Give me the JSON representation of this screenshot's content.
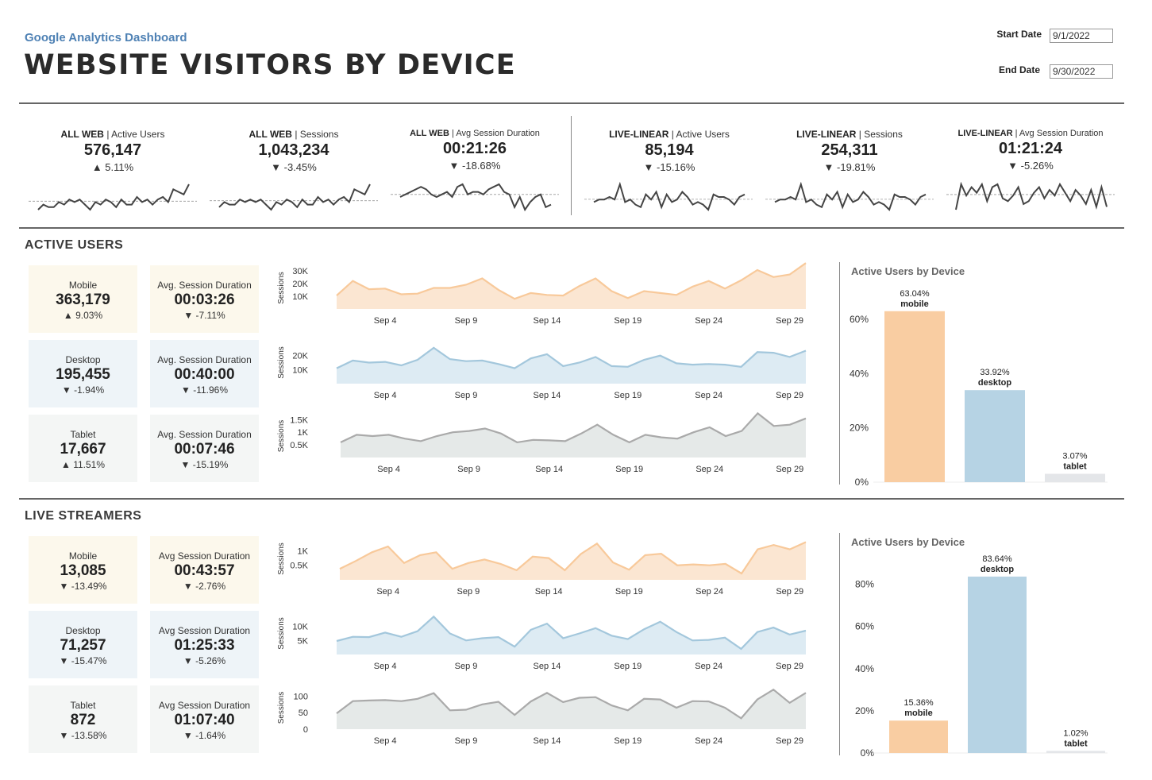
{
  "header": {
    "subtitle": "Google Analytics Dashboard",
    "title": "WEBSITE VISITORS BY DEVICE",
    "start_label": "Start Date",
    "start_value": "9/1/2022",
    "end_label": "End Date",
    "end_value": "9/30/2022"
  },
  "kpis": [
    {
      "group": "ALL WEB",
      "metric": "| Active Users",
      "value": "576,147",
      "change": "▲ 5.11%",
      "spark": [
        12,
        14,
        13,
        13,
        15,
        14,
        16,
        15,
        16,
        14,
        12,
        15,
        14,
        16,
        15,
        13,
        16,
        14,
        14,
        17,
        15,
        16,
        14,
        16,
        17,
        15,
        20,
        19,
        18,
        22
      ]
    },
    {
      "group": "ALL WEB",
      "metric": "| Sessions",
      "value": "1,043,234",
      "change": "▼ -3.45%",
      "spark": [
        13,
        15,
        14,
        14,
        16,
        15,
        16,
        15,
        16,
        14,
        12,
        15,
        14,
        16,
        15,
        13,
        16,
        14,
        14,
        17,
        15,
        16,
        14,
        16,
        17,
        15,
        20,
        19,
        18,
        22
      ]
    },
    {
      "group": "ALL WEB",
      "metric": "| Avg Session Duration",
      "value": "00:21:26",
      "change": "▼ -18.68%",
      "spark": [
        18,
        19,
        20,
        21,
        22,
        21,
        19,
        18,
        19,
        20,
        18,
        22,
        23,
        19,
        20,
        20,
        19,
        21,
        22,
        23,
        20,
        19,
        14,
        18,
        13,
        16,
        18,
        19,
        14,
        15
      ]
    },
    {
      "group": "LIVE-LINEAR",
      "metric": "| Active Users",
      "value": "85,194",
      "change": "▼ -15.16%",
      "spark": [
        15,
        16,
        16,
        17,
        16,
        22,
        15,
        16,
        14,
        13,
        18,
        16,
        19,
        13,
        18,
        15,
        16,
        19,
        17,
        14,
        15,
        14,
        12,
        18,
        17,
        17,
        16,
        14,
        17,
        18
      ]
    },
    {
      "group": "LIVE-LINEAR",
      "metric": "| Sessions",
      "value": "254,311",
      "change": "▼ -19.81%",
      "spark": [
        15,
        16,
        16,
        17,
        16,
        22,
        15,
        16,
        14,
        13,
        18,
        16,
        19,
        13,
        18,
        15,
        16,
        19,
        17,
        14,
        15,
        14,
        12,
        18,
        17,
        17,
        16,
        14,
        17,
        18
      ]
    },
    {
      "group": "LIVE-LINEAR",
      "metric": "| Avg Session Duration",
      "value": "01:21:24",
      "change": "▼ -5.26%",
      "spark": [
        12,
        21,
        17,
        20,
        18,
        21,
        15,
        20,
        21,
        16,
        15,
        17,
        20,
        14,
        15,
        18,
        20,
        16,
        19,
        17,
        21,
        18,
        15,
        19,
        17,
        14,
        19,
        13,
        20,
        13
      ]
    }
  ],
  "sections": [
    {
      "title": "ACTIVE USERS",
      "cards": [
        {
          "device": "Mobile",
          "value": "363,179",
          "change": "▲ 9.03%",
          "dur_label": "Avg. Session Duration",
          "dur_value": "00:03:26",
          "dur_change": "▼ -7.11%"
        },
        {
          "device": "Desktop",
          "value": "195,455",
          "change": "▼ -1.94%",
          "dur_label": "Avg. Session Duration",
          "dur_value": "00:40:00",
          "dur_change": "▼ -11.96%"
        },
        {
          "device": "Tablet",
          "value": "17,667",
          "change": "▲ 11.51%",
          "dur_label": "Avg. Session Duration",
          "dur_value": "00:07:46",
          "dur_change": "▼ -15.19%"
        }
      ],
      "bar_title": "Active Users by Device",
      "bar_yticks": [
        "60%",
        "40%",
        "20%",
        "0%"
      ]
    },
    {
      "title": "LIVE STREAMERS",
      "cards": [
        {
          "device": "Mobile",
          "value": "13,085",
          "change": "▼ -13.49%",
          "dur_label": "Avg Session Duration",
          "dur_value": "00:43:57",
          "dur_change": "▼ -2.76%"
        },
        {
          "device": "Desktop",
          "value": "71,257",
          "change": "▼ -15.47%",
          "dur_label": "Avg Session Duration",
          "dur_value": "01:25:33",
          "dur_change": "▼ -5.26%"
        },
        {
          "device": "Tablet",
          "value": "872",
          "change": "▼ -13.58%",
          "dur_label": "Avg Session Duration",
          "dur_value": "01:07:40",
          "dur_change": "▼ -1.64%"
        }
      ],
      "bar_title": "Active Users by Device",
      "bar_yticks": [
        "80%",
        "60%",
        "40%",
        "20%",
        "0%"
      ]
    }
  ],
  "colors": {
    "mobile": "#f8c99a",
    "mobile_fill": "#fbe6d2",
    "desktop": "#a3c7dc",
    "desktop_fill": "#ddebf3",
    "tablet": "#aaaaaa",
    "tablet_fill": "#e5e9e8",
    "bar_mobile": "#f9cda2",
    "bar_desktop": "#b6d3e4",
    "bar_tablet": "#e4e6e9"
  },
  "chart_data": [
    {
      "type": "area",
      "id": "au-mobile",
      "ylabel": "Sessions",
      "yticks": [
        "30K",
        "20K",
        "10K"
      ],
      "ylim": [
        0,
        33000
      ],
      "xticks": [
        "Sep 4",
        "Sep 9",
        "Sep 14",
        "Sep 19",
        "Sep 24",
        "Sep 29"
      ],
      "x": [
        1,
        2,
        3,
        4,
        5,
        6,
        7,
        8,
        9,
        10,
        11,
        12,
        13,
        14,
        15,
        16,
        17,
        18,
        19,
        20,
        21,
        22,
        23,
        24,
        25,
        26,
        27,
        28,
        29,
        30
      ],
      "values": [
        10500,
        22000,
        15500,
        16000,
        11500,
        12000,
        16500,
        16500,
        19000,
        24000,
        15000,
        8000,
        12500,
        11000,
        10500,
        18000,
        24000,
        14000,
        8500,
        14000,
        12500,
        11000,
        17500,
        22000,
        16000,
        22500,
        30500,
        25000,
        27000,
        36000
      ]
    },
    {
      "type": "area",
      "id": "au-desktop",
      "ylabel": "Sessions",
      "yticks": [
        "20K",
        "10K"
      ],
      "ylim": [
        0,
        30000
      ],
      "xticks": [
        "Sep 4",
        "Sep 9",
        "Sep 14",
        "Sep 19",
        "Sep 24",
        "Sep 29"
      ],
      "x": [
        1,
        2,
        3,
        4,
        5,
        6,
        7,
        8,
        9,
        10,
        11,
        12,
        13,
        14,
        15,
        16,
        17,
        18,
        19,
        20,
        21,
        22,
        23,
        24,
        25,
        26,
        27,
        28,
        29,
        30
      ],
      "values": [
        11000,
        16500,
        15000,
        15500,
        13000,
        17000,
        25500,
        17500,
        16000,
        16500,
        14000,
        11000,
        18000,
        21000,
        12500,
        15000,
        19000,
        12500,
        12000,
        17000,
        20000,
        14500,
        13500,
        14000,
        13500,
        12000,
        22500,
        22000,
        19000,
        23500
      ]
    },
    {
      "type": "area",
      "id": "au-tablet",
      "ylabel": "Sessions",
      "yticks": [
        "1.5K",
        "1K",
        "0.5K"
      ],
      "ylim": [
        0,
        1700
      ],
      "xticks": [
        "Sep 4",
        "Sep 9",
        "Sep 14",
        "Sep 19",
        "Sep 24",
        "Sep 29"
      ],
      "x": [
        1,
        2,
        3,
        4,
        5,
        6,
        7,
        8,
        9,
        10,
        11,
        12,
        13,
        14,
        15,
        16,
        17,
        18,
        19,
        20,
        21,
        22,
        23,
        24,
        25,
        26,
        27,
        28,
        29,
        30
      ],
      "values": [
        600,
        900,
        850,
        900,
        750,
        650,
        850,
        1000,
        1050,
        1150,
        950,
        600,
        700,
        680,
        650,
        950,
        1300,
        900,
        600,
        900,
        800,
        750,
        1000,
        1200,
        850,
        1050,
        1750,
        1250,
        1300,
        1550
      ]
    },
    {
      "type": "area",
      "id": "ls-mobile",
      "ylabel": "Sessions",
      "yticks": [
        "1K",
        "0.5K"
      ],
      "ylim": [
        0,
        1450
      ],
      "xticks": [
        "Sep 4",
        "Sep 9",
        "Sep 14",
        "Sep 19",
        "Sep 24",
        "Sep 29"
      ],
      "x": [
        1,
        2,
        3,
        4,
        5,
        6,
        7,
        8,
        9,
        10,
        11,
        12,
        13,
        14,
        15,
        16,
        17,
        18,
        19,
        20,
        21,
        22,
        23,
        24,
        25,
        26,
        27,
        28,
        29,
        30
      ],
      "values": [
        380,
        650,
        950,
        1150,
        580,
        850,
        950,
        380,
        580,
        700,
        550,
        330,
        800,
        750,
        330,
        890,
        1250,
        600,
        350,
        850,
        900,
        500,
        530,
        500,
        550,
        220,
        1050,
        1200,
        1050,
        1300
      ]
    },
    {
      "type": "area",
      "id": "ls-desktop",
      "ylabel": "Sessions",
      "yticks": [
        "10K",
        "5K"
      ],
      "ylim": [
        0,
        15000
      ],
      "xticks": [
        "Sep 4",
        "Sep 9",
        "Sep 14",
        "Sep 19",
        "Sep 24",
        "Sep 29"
      ],
      "x": [
        1,
        2,
        3,
        4,
        5,
        6,
        7,
        8,
        9,
        10,
        11,
        12,
        13,
        14,
        15,
        16,
        17,
        18,
        19,
        20,
        21,
        22,
        23,
        24,
        25,
        26,
        27,
        28,
        29,
        30
      ],
      "values": [
        4800,
        6300,
        6200,
        7800,
        6300,
        8300,
        13500,
        7500,
        5000,
        5800,
        6200,
        2800,
        8800,
        11000,
        5800,
        7500,
        9400,
        6700,
        5500,
        9000,
        11700,
        8000,
        5000,
        5200,
        6000,
        2000,
        8000,
        9600,
        7100,
        8500
      ]
    },
    {
      "type": "area",
      "id": "ls-tablet",
      "ylabel": "Sessions",
      "yticks": [
        "100",
        "50",
        "0"
      ],
      "ylim": [
        0,
        130
      ],
      "xticks": [
        "Sep 4",
        "Sep 9",
        "Sep 14",
        "Sep 19",
        "Sep 24",
        "Sep 29"
      ],
      "x": [
        1,
        2,
        3,
        4,
        5,
        6,
        7,
        8,
        9,
        10,
        11,
        12,
        13,
        14,
        15,
        16,
        17,
        18,
        19,
        20,
        21,
        22,
        23,
        24,
        25,
        26,
        27,
        28,
        29,
        30
      ],
      "values": [
        48,
        85,
        87,
        88,
        85,
        92,
        109,
        57,
        59,
        75,
        83,
        43,
        84,
        110,
        82,
        95,
        97,
        72,
        57,
        92,
        90,
        65,
        85,
        84,
        65,
        33,
        90,
        120,
        80,
        110
      ]
    },
    {
      "type": "bar",
      "id": "au-bars",
      "title": "Active Users by Device",
      "categories": [
        "mobile",
        "desktop",
        "tablet"
      ],
      "values": [
        63.04,
        33.92,
        3.07
      ],
      "labels": [
        "63.04%",
        "33.92%",
        "3.07%"
      ],
      "ylim": [
        0,
        70
      ],
      "yticks": [
        60,
        40,
        20,
        0
      ]
    },
    {
      "type": "bar",
      "id": "ls-bars",
      "title": "Active Users by Device",
      "categories": [
        "mobile",
        "desktop",
        "tablet"
      ],
      "values": [
        15.36,
        83.64,
        1.02
      ],
      "labels": [
        "15.36%",
        "83.64%",
        "1.02%"
      ],
      "ylim": [
        0,
        90
      ],
      "yticks": [
        80,
        60,
        40,
        20,
        0
      ]
    }
  ]
}
